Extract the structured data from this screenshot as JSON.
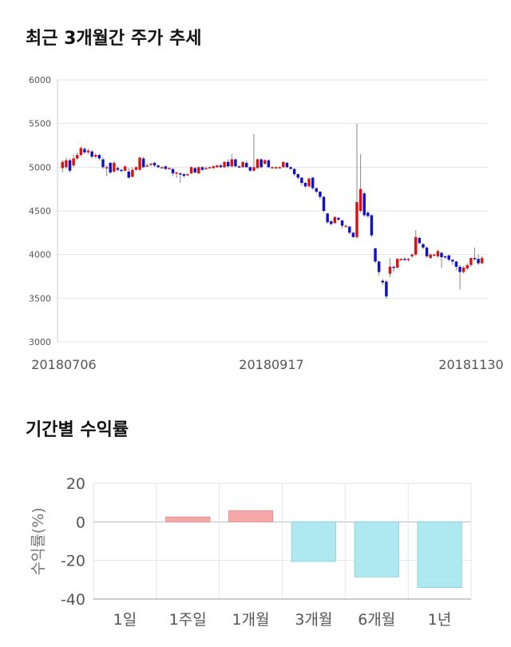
{
  "sections": {
    "price_title": "최근 3개월간 주가 추세",
    "return_title": "기간별 수익률"
  },
  "colors": {
    "up": "#dd1111",
    "down": "#1111cc",
    "wick": "#888888",
    "positive_bar": "#f7a8a8",
    "negative_bar": "#aee9f2",
    "grid": "#e5e5e5"
  },
  "chart_data": [
    {
      "type": "candlestick",
      "title": "최근 3개월간 주가 추세",
      "ylim": [
        3000,
        6000
      ],
      "yticks": [
        3000,
        3500,
        4000,
        4500,
        5000,
        5500,
        6000
      ],
      "x_tick_labels": [
        "20180706",
        "20180917",
        "20181130"
      ],
      "candles": [
        [
          4990,
          5060,
          4940,
          5080
        ],
        [
          5000,
          5080,
          4980,
          5110
        ],
        [
          5080,
          4960,
          4940,
          5100
        ],
        [
          5020,
          5100,
          5000,
          5140
        ],
        [
          5100,
          5140,
          5080,
          5170
        ],
        [
          5140,
          5220,
          5120,
          5240
        ],
        [
          5210,
          5170,
          5150,
          5230
        ],
        [
          5170,
          5190,
          5150,
          5210
        ],
        [
          5180,
          5120,
          5100,
          5200
        ],
        [
          5120,
          5140,
          5100,
          5160
        ],
        [
          5140,
          5100,
          5080,
          5160
        ],
        [
          5090,
          5000,
          4980,
          5110
        ],
        [
          5000,
          5000,
          4900,
          5020
        ],
        [
          5050,
          4940,
          4920,
          5060
        ],
        [
          4950,
          5050,
          4940,
          5070
        ],
        [
          4990,
          4970,
          4950,
          5010
        ],
        [
          4970,
          4960,
          4940,
          4980
        ],
        [
          4960,
          5010,
          4950,
          5020
        ],
        [
          4950,
          4880,
          4870,
          4990
        ],
        [
          4890,
          4970,
          4880,
          5000
        ],
        [
          4970,
          5000,
          4960,
          5010
        ],
        [
          4970,
          5110,
          4960,
          5120
        ],
        [
          5100,
          5000,
          4990,
          5120
        ],
        [
          5020,
          5020,
          5010,
          5040
        ],
        [
          5030,
          5040,
          5010,
          5050
        ],
        [
          5050,
          5020,
          5000,
          5060
        ],
        [
          5020,
          5000,
          4990,
          5030
        ],
        [
          5000,
          5000,
          4990,
          5010
        ],
        [
          5010,
          4980,
          4970,
          5020
        ],
        [
          4980,
          4990,
          4970,
          5000
        ],
        [
          4980,
          4930,
          4900,
          4990
        ],
        [
          4940,
          4940,
          4880,
          4950
        ],
        [
          4930,
          4920,
          4820,
          4940
        ],
        [
          4920,
          4900,
          4880,
          4930
        ],
        [
          4920,
          4920,
          4900,
          4930
        ],
        [
          4930,
          5000,
          4920,
          5010
        ],
        [
          4990,
          4940,
          4930,
          5000
        ],
        [
          4930,
          5000,
          4920,
          5010
        ],
        [
          5000,
          4970,
          4960,
          5010
        ],
        [
          4980,
          4990,
          4970,
          5010
        ],
        [
          5000,
          5000,
          4990,
          5010
        ],
        [
          4990,
          5010,
          4980,
          5020
        ],
        [
          5000,
          5020,
          4990,
          5030
        ],
        [
          5020,
          5000,
          4990,
          5040
        ],
        [
          5000,
          5060,
          4990,
          5070
        ],
        [
          5060,
          5010,
          5000,
          5090
        ],
        [
          5010,
          5090,
          5000,
          5150
        ],
        [
          5090,
          5010,
          5000,
          5100
        ],
        [
          5010,
          5000,
          4990,
          5020
        ],
        [
          5000,
          5060,
          4990,
          5070
        ],
        [
          5050,
          5000,
          4990,
          5080
        ],
        [
          5000,
          4960,
          4950,
          5010
        ],
        [
          4960,
          5000,
          4950,
          5380
        ],
        [
          4990,
          5090,
          4980,
          5100
        ],
        [
          5090,
          5000,
          4990,
          5100
        ],
        [
          5040,
          5080,
          5030,
          5090
        ],
        [
          5080,
          5000,
          4990,
          5090
        ],
        [
          5000,
          5000,
          4990,
          5010
        ],
        [
          5000,
          5000,
          4980,
          5010
        ],
        [
          5000,
          5000,
          4990,
          5010
        ],
        [
          5000,
          5060,
          4990,
          5070
        ],
        [
          5050,
          5000,
          4990,
          5060
        ],
        [
          5000,
          4980,
          4970,
          5010
        ],
        [
          4980,
          4920,
          4900,
          4990
        ],
        [
          4920,
          4880,
          4860,
          4930
        ],
        [
          4880,
          4820,
          4790,
          4890
        ],
        [
          4820,
          4780,
          4760,
          4830
        ],
        [
          4780,
          4870,
          4770,
          4880
        ],
        [
          4880,
          4760,
          4740,
          4890
        ],
        [
          4760,
          4720,
          4700,
          4770
        ],
        [
          4720,
          4660,
          4630,
          4730
        ],
        [
          4660,
          4500,
          4480,
          4670
        ],
        [
          4470,
          4370,
          4350,
          4480
        ],
        [
          4380,
          4350,
          4330,
          4400
        ],
        [
          4360,
          4430,
          4350,
          4440
        ],
        [
          4420,
          4400,
          4380,
          4430
        ],
        [
          4390,
          4330,
          4300,
          4400
        ],
        [
          4320,
          4330,
          4310,
          4340
        ],
        [
          4320,
          4250,
          4230,
          4330
        ],
        [
          4250,
          4200,
          4190,
          4260
        ],
        [
          4200,
          4600,
          4180,
          5500
        ],
        [
          4500,
          4750,
          4480,
          5150
        ],
        [
          4700,
          4450,
          4430,
          4720
        ],
        [
          4480,
          4440,
          4420,
          4500
        ],
        [
          4450,
          4220,
          4200,
          4460
        ],
        [
          4070,
          3920,
          3900,
          4080
        ],
        [
          3920,
          3800,
          3760,
          3930
        ],
        [
          3700,
          3680,
          3650,
          3720
        ],
        [
          3690,
          3520,
          3490,
          3710
        ],
        [
          3780,
          3860,
          3740,
          3960
        ],
        [
          3860,
          3850,
          3800,
          3880
        ],
        [
          3850,
          3950,
          3840,
          3960
        ],
        [
          3940,
          3950,
          3930,
          3960
        ],
        [
          3950,
          3940,
          3930,
          3970
        ],
        [
          3940,
          3950,
          3920,
          3960
        ],
        [
          3980,
          4000,
          3960,
          4010
        ],
        [
          4000,
          4200,
          3980,
          4280
        ],
        [
          4190,
          4130,
          4120,
          4200
        ],
        [
          4120,
          4080,
          4060,
          4130
        ],
        [
          4080,
          3980,
          3960,
          4090
        ],
        [
          3960,
          4000,
          3950,
          4010
        ],
        [
          3990,
          4000,
          3980,
          4010
        ],
        [
          3980,
          4040,
          3960,
          4060
        ],
        [
          4020,
          3970,
          3850,
          4030
        ],
        [
          3980,
          3970,
          3950,
          3990
        ],
        [
          3990,
          3940,
          3920,
          4000
        ],
        [
          3940,
          3920,
          3880,
          3950
        ],
        [
          3920,
          3860,
          3820,
          3930
        ],
        [
          3860,
          3800,
          3600,
          3880
        ],
        [
          3800,
          3850,
          3780,
          3870
        ],
        [
          3840,
          3880,
          3820,
          3900
        ],
        [
          3880,
          3960,
          3860,
          3970
        ],
        [
          3960,
          3950,
          3930,
          4080
        ],
        [
          3950,
          3900,
          3880,
          4000
        ],
        [
          3900,
          3960,
          3890,
          3980
        ]
      ]
    },
    {
      "type": "bar",
      "ylabel": "수익률(%)",
      "ylim": [
        -40,
        20
      ],
      "yticks": [
        20,
        0,
        -20,
        -40
      ],
      "categories": [
        "1일",
        "1주일",
        "1개월",
        "3개월",
        "6개월",
        "1년"
      ],
      "values": [
        0,
        2.5,
        5.8,
        -20.5,
        -28.5,
        -34.0
      ]
    }
  ]
}
